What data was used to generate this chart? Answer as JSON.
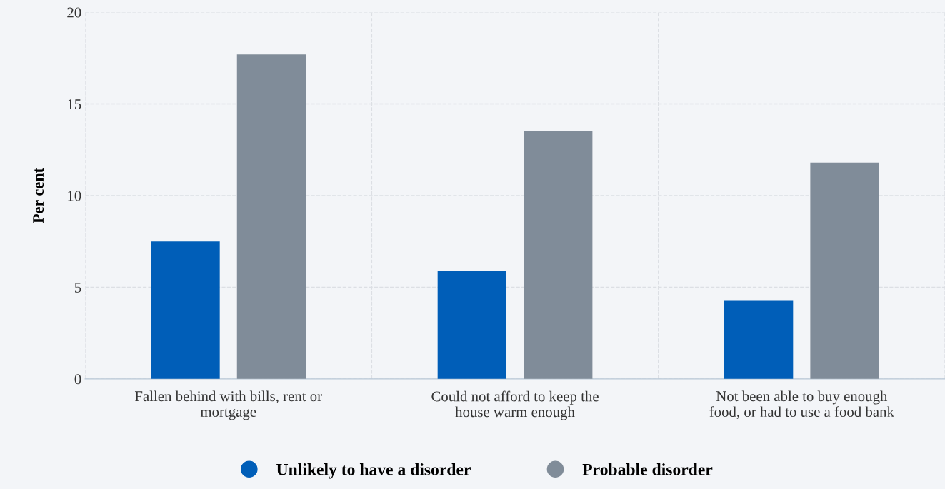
{
  "chart_data": {
    "type": "bar",
    "ylabel": "Per cent",
    "categories": [
      "Fallen behind with bills, rent or\nmortgage",
      "Could not afford to keep the\nhouse warm enough",
      "Not been able to buy enough\nfood, or had to use a food bank"
    ],
    "series": [
      {
        "name": "Unlikely to have a disorder",
        "color": "#005eb8",
        "values": [
          7.5,
          5.9,
          4.3
        ]
      },
      {
        "name": "Probable disorder",
        "color": "#808c99",
        "values": [
          17.7,
          13.5,
          11.8
        ]
      }
    ],
    "ylim": [
      0,
      20
    ],
    "yticks": [
      0,
      5,
      10,
      15,
      20
    ],
    "grid": true,
    "legend": "bottom"
  }
}
